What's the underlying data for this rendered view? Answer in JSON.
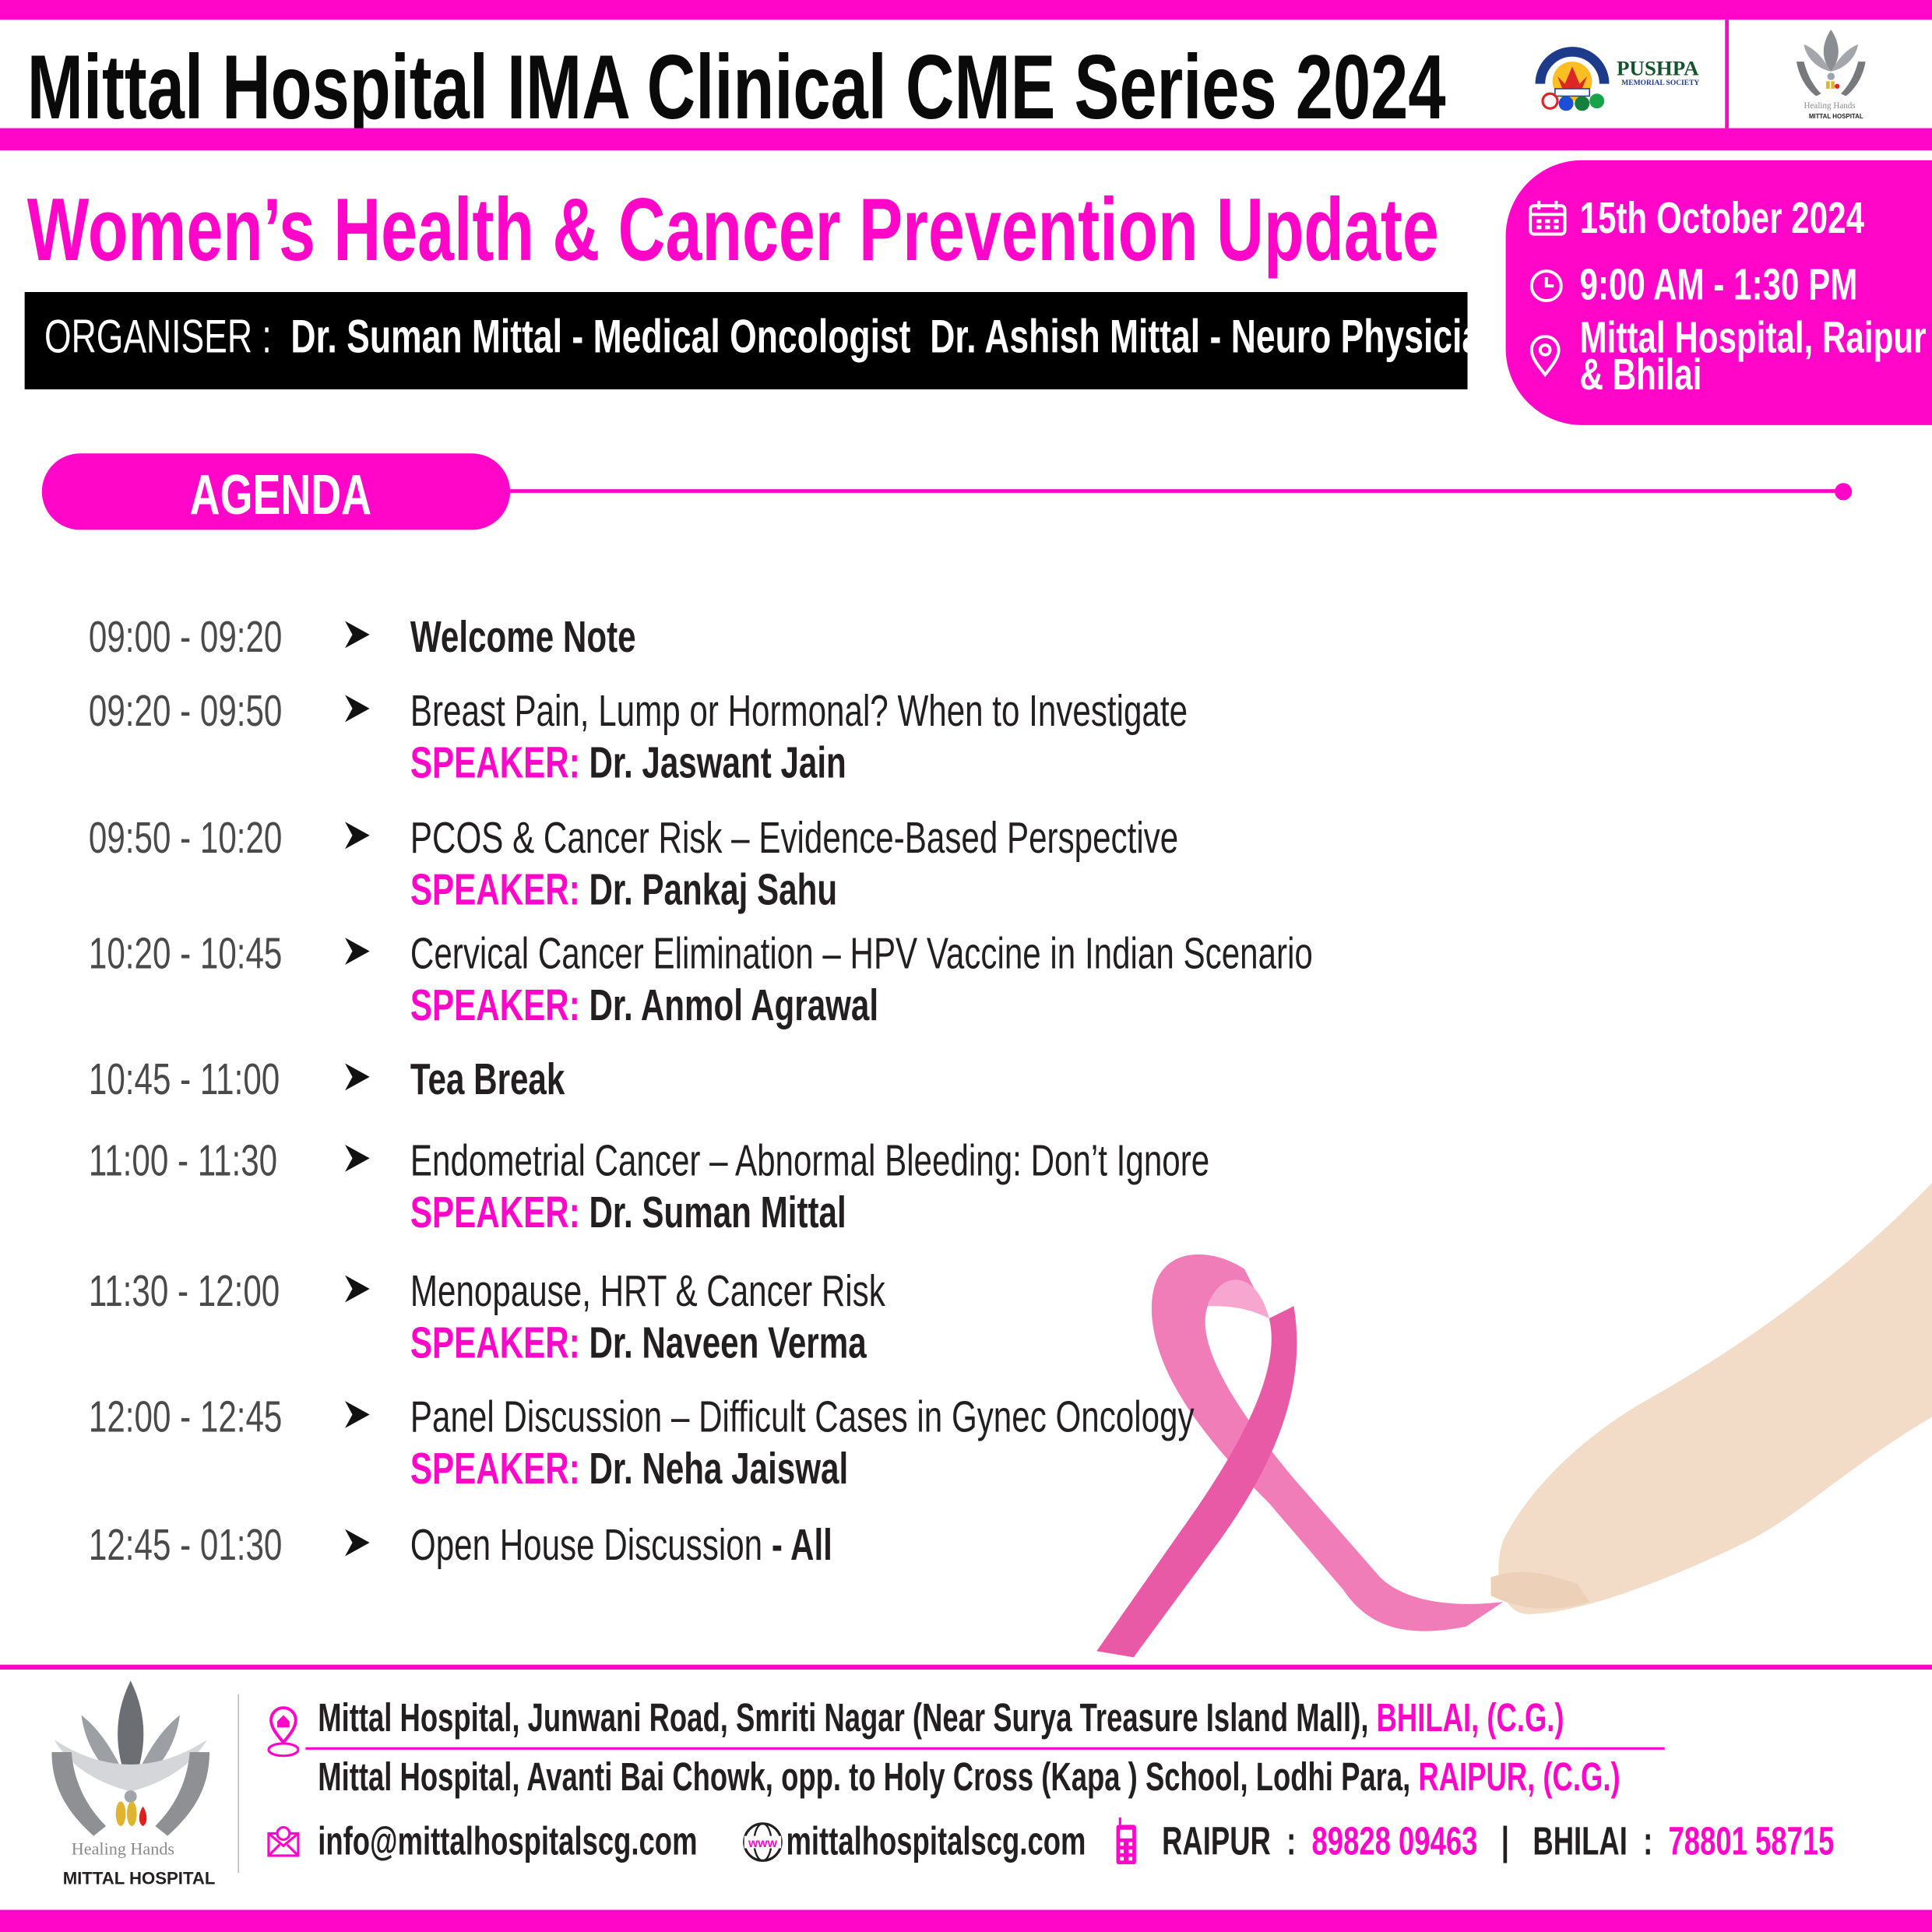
{
  "header": {
    "title": "Mittal Hospital IMA Clinical CME Series 2024",
    "logo_pushpa": {
      "name": "PUSHPA",
      "sub": "MEMORIAL SOCIETY",
      "ring": "PUSHPA MEMORIAL SOCIETY"
    },
    "logo_mittal": {
      "tagline": "Healing Hands",
      "name": "MITTAL HOSPITAL"
    }
  },
  "event": {
    "subtitle": "Women’s Health & Cancer Prevention Update",
    "organiser_label": "ORGANISER :",
    "organisers": "Dr. Suman Mittal - Medical Oncologist  Dr. Ashish Mittal - Neuro Physician",
    "date": "15th October 2024",
    "time": "9:00 AM - 1:30 PM",
    "venue_line1": "Mittal Hospital, Raipur",
    "venue_line2": "& Bhilai"
  },
  "agenda": {
    "heading": "AGENDA",
    "speaker_label": "SPEAKER:",
    "items": [
      {
        "time": "09:00 - 09:20",
        "topic": "Welcome Note",
        "speaker": ""
      },
      {
        "time": "09:20 - 09:50",
        "topic": "Breast Pain, Lump or Hormonal? When to Investigate",
        "speaker": "Dr. Jaswant Jain"
      },
      {
        "time": "09:50 - 10:20",
        "topic": "PCOS & Cancer Risk – Evidence-Based Perspective",
        "speaker": "Dr. Pankaj Sahu"
      },
      {
        "time": "10:20 - 10:45",
        "topic": "Cervical Cancer Elimination – HPV Vaccine in Indian Scenario",
        "speaker": "Dr. Anmol Agrawal"
      },
      {
        "time": "10:45 - 11:00",
        "topic": "Tea Break",
        "speaker": ""
      },
      {
        "time": "11:00 - 11:30",
        "topic": "Endometrial Cancer – Abnormal Bleeding: Don’t Ignore",
        "speaker": "Dr. Suman Mittal"
      },
      {
        "time": "11:30 - 12:00",
        "topic": "Menopause, HRT & Cancer Risk",
        "speaker": "Dr. Naveen Verma"
      },
      {
        "time": "12:00 - 12:45",
        "topic": "Panel Discussion – Difficult Cases in Gynec Oncology",
        "speaker": "Dr. Neha Jaiswal"
      },
      {
        "time": "12:45 - 01:30",
        "topic": "Open House Discussion",
        "suffix": " - All",
        "speaker": ""
      }
    ]
  },
  "footer": {
    "logo_tagline": "Healing Hands",
    "logo_name": "MITTAL HOSPITAL",
    "address1": "Mittal Hospital, Junwani Road, Smriti Nagar (Near Surya Treasure Island Mall), ",
    "address1_city": "BHILAI, (C.G.)",
    "address2": "Mittal Hospital, Avanti Bai Chowk, opp. to Holy Cross (Kapa ) School, Lodhi Para, ",
    "address2_city": "RAIPUR, (C.G.)",
    "email": "info@mittalhospitalscg.com",
    "website": "mittalhospitalscg.com",
    "raipur_label": "RAIPUR  :",
    "raipur_phone": "89828 09463",
    "separator": "|",
    "bhilai_label": "BHILAI  :",
    "bhilai_phone": "78801 58715"
  },
  "colors": {
    "accent": "#ff06c9",
    "text": "#231f20",
    "ribbon": "#f07cb8"
  }
}
